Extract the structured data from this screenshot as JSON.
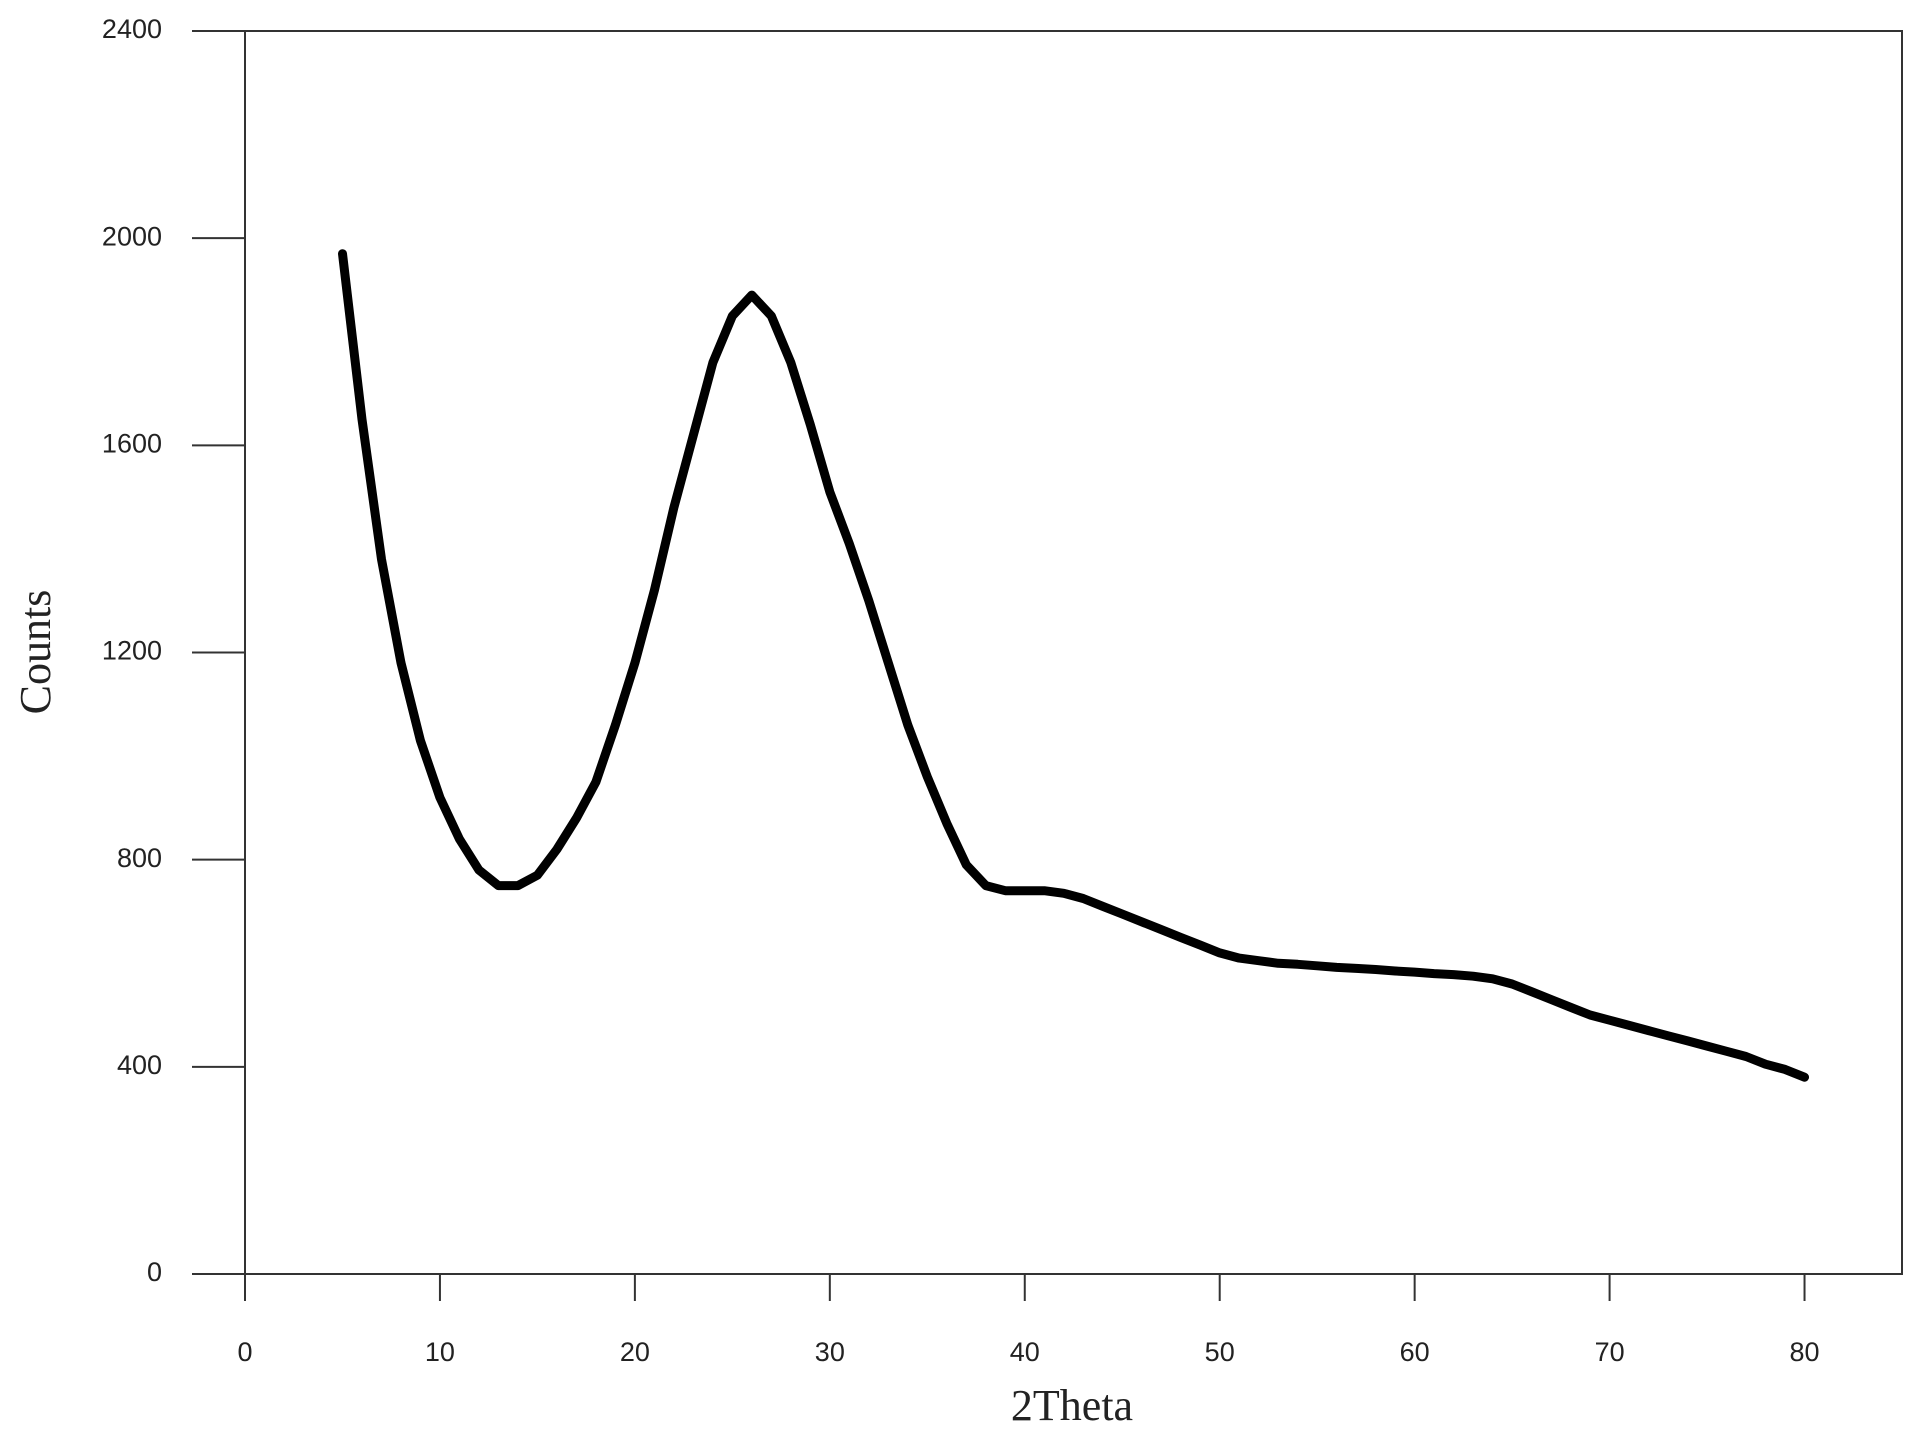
{
  "chart_data": {
    "type": "line",
    "xlabel": "2Theta",
    "ylabel": "Counts",
    "x": [
      5,
      6,
      7,
      8,
      9,
      10,
      11,
      12,
      13,
      14,
      15,
      16,
      17,
      18,
      19,
      20,
      21,
      22,
      23,
      24,
      25,
      26,
      27,
      28,
      29,
      30,
      31,
      32,
      33,
      34,
      35,
      36,
      37,
      38,
      39,
      40,
      41,
      42,
      43,
      44,
      45,
      46,
      47,
      48,
      49,
      50,
      51,
      52,
      53,
      54,
      55,
      56,
      57,
      58,
      59,
      60,
      61,
      62,
      63,
      64,
      65,
      66,
      67,
      68,
      69,
      70,
      71,
      72,
      73,
      74,
      75,
      76,
      77,
      78,
      79,
      80
    ],
    "series": [
      {
        "color": "#000000",
        "values": [
          1970,
          1650,
          1380,
          1180,
          1030,
          920,
          840,
          780,
          750,
          750,
          770,
          820,
          880,
          950,
          1060,
          1180,
          1320,
          1480,
          1620,
          1760,
          1850,
          1890,
          1850,
          1760,
          1640,
          1510,
          1410,
          1300,
          1180,
          1060,
          960,
          870,
          790,
          750,
          740,
          740,
          740,
          735,
          725,
          710,
          695,
          680,
          665,
          650,
          635,
          620,
          610,
          605,
          600,
          598,
          595,
          592,
          590,
          588,
          585,
          583,
          580,
          578,
          575,
          570,
          560,
          545,
          530,
          515,
          500,
          490,
          480,
          470,
          460,
          450,
          440,
          430,
          420,
          405,
          395,
          380
        ]
      }
    ],
    "xlim": [
      0,
      85
    ],
    "ylim": [
      0,
      2400
    ],
    "xticks": [
      0,
      10,
      20,
      30,
      40,
      50,
      60,
      70,
      80
    ],
    "yticks": [
      0,
      400,
      800,
      1200,
      1600,
      2000,
      2400
    ],
    "grid": false
  }
}
